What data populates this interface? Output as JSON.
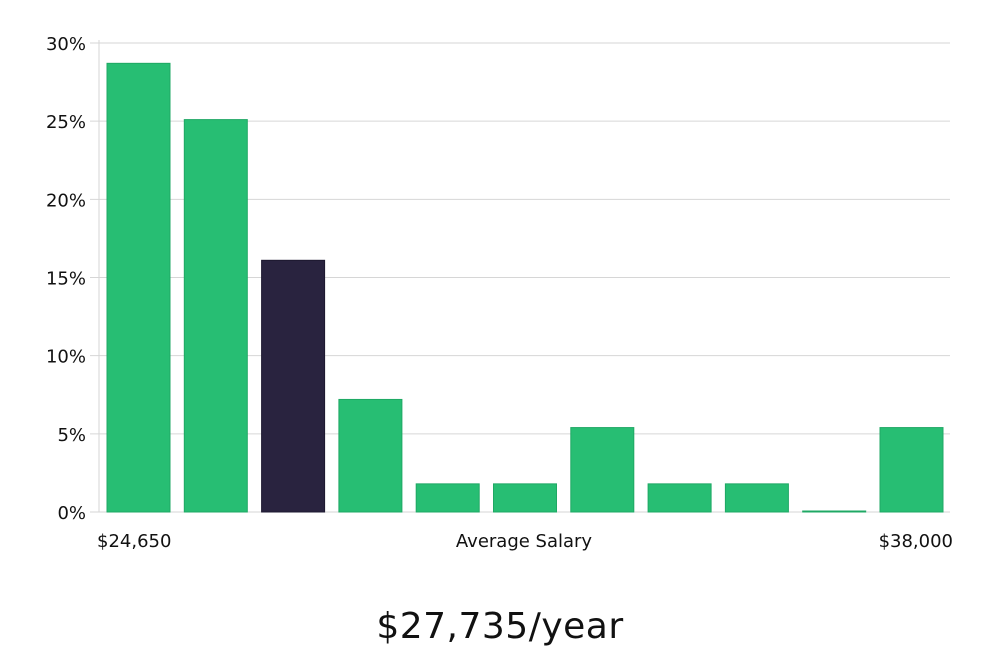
{
  "chart_data": {
    "type": "bar",
    "categories": [
      "1",
      "2",
      "3",
      "4",
      "5",
      "6",
      "7",
      "8",
      "9",
      "10",
      "11"
    ],
    "values": [
      28.7,
      25.1,
      16.1,
      7.2,
      1.8,
      1.8,
      5.4,
      1.8,
      1.8,
      0.05,
      5.4
    ],
    "highlight_index": 2,
    "ylim": [
      0,
      30
    ],
    "yticks": [
      "0%",
      "5%",
      "10%",
      "15%",
      "20%",
      "25%",
      "30%"
    ],
    "ytick_values": [
      0,
      5,
      10,
      15,
      20,
      25,
      30
    ],
    "xlabel": "Average Salary",
    "x_min_label": "$24,650",
    "x_max_label": "$38,000",
    "grid": true,
    "colors": {
      "bar": "#27be73",
      "bar_border": "#1fa864",
      "highlight": "#29233f",
      "grid": "#d6d6d6"
    }
  },
  "headline": "$27,735/year"
}
